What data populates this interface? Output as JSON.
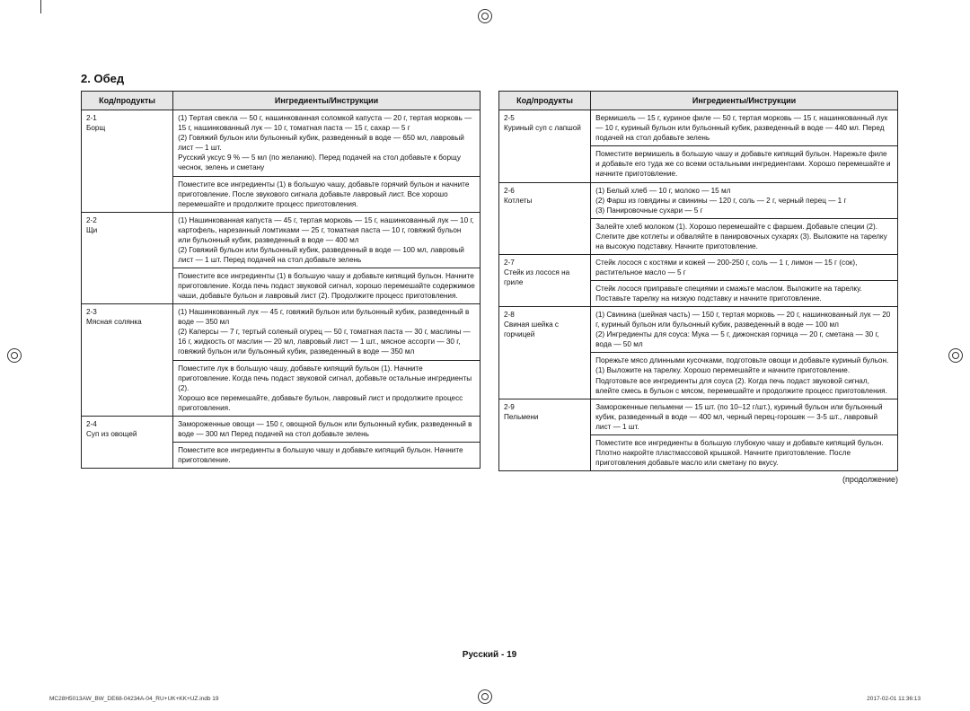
{
  "section_title": "2. Обед",
  "headers": {
    "code": "Код/продукты",
    "instr": "Ингредиенты/Инструкции"
  },
  "left_rows": [
    {
      "code": "2-1\nБорщ",
      "text": "(1) Тертая свекла — 50 г, нашинкованная соломкой капуста — 20 г, тертая морковь — 15 г, нашинкованный лук — 10 г, томатная паста — 15 г, сахар — 5 г\n(2) Говяжий бульон или бульонный кубик, разведенный в воде — 650 мл, лавровый лист — 1 шт.\nРусский уксус 9 % — 5 мл (по желанию). Перед подачей на стол добавьте к борщу чеснок, зелень и сметану"
    },
    {
      "code": "",
      "text": "Поместите все ингредиенты (1) в большую чашу, добавьте горячий бульон и начните приготовление. После звукового сигнала добавьте лавровый лист. Все хорошо перемешайте и продолжите процесс приготовления."
    },
    {
      "code": "2-2\nЩи",
      "text": "(1) Нашинкованная капуста — 45 г, тертая морковь — 15 г, нашинкованный лук — 10 г, картофель, нарезанный ломтиками — 25 г, томатная паста — 10 г, говяжий бульон или бульонный кубик, разведенный в воде — 400 мл\n(2) Говяжий бульон или бульонный кубик, разведенный в воде — 100 мл, лавровый лист — 1 шт. Перед подачей на стол добавьте зелень"
    },
    {
      "code": "",
      "text": "Поместите все ингредиенты (1) в большую чашу и добавьте кипящий бульон. Начните приготовление. Когда печь подаст звуковой сигнал, хорошо перемешайте содержимое чаши, добавьте бульон и лавровый лист (2). Продолжите процесс приготовления."
    },
    {
      "code": "2-3\nМясная солянка",
      "text": "(1) Нашинкованный лук — 45 г, говяжий бульон или бульонный кубик, разведенный в воде — 350 мл\n(2) Каперсы — 7 г, тертый соленый огурец — 50 г, томатная паста — 30 г, маслины — 16 г, жидкость от маслин — 20 мл, лавровый лист — 1 шт., мясное ассорти — 30 г, говяжий бульон или бульонный кубик, разведенный в воде — 350 мл"
    },
    {
      "code": "",
      "text": "Поместите лук в большую чашу, добавьте кипящий бульон (1). Начните приготовление. Когда печь подаст звуковой сигнал, добавьте остальные ингредиенты (2).\nХорошо все перемешайте, добавьте бульон, лавровый лист и продолжите процесс приготовления."
    },
    {
      "code": "2-4\nСуп из овощей",
      "text": "Замороженные овощи — 150 г, овощной бульон или бульонный кубик, разведенный в воде — 300 мл Перед подачей на стол добавьте зелень"
    },
    {
      "code": "",
      "text": "Поместите все ингредиенты в большую чашу и добавьте кипящий бульон. Начните приготовление."
    }
  ],
  "right_rows": [
    {
      "code": "2-5\nКуриный суп с лапшой",
      "text": "Вермишель — 15 г, куриное филе — 50 г, тертая морковь — 15 г, нашинкованный лук — 10 г, куриный бульон или бульонный кубик, разведенный в воде — 440 мл. Перед подачей на стол добавьте зелень"
    },
    {
      "code": "",
      "text": "Поместите вермишель в большую чашу и добавьте кипящий бульон. Нарежьте филе и добавьте его туда же со всеми остальными ингредиентами. Хорошо перемешайте и начните приготовление."
    },
    {
      "code": "2-6\nКотлеты",
      "text": "(1) Белый хлеб — 10 г, молоко — 15 мл\n(2) Фарш из говядины и свинины — 120 г, соль — 2 г, черный перец — 1 г\n(3) Панировочные сухари — 5 г"
    },
    {
      "code": "",
      "text": "Залейте хлеб молоком (1). Хорошо перемешайте с фаршем. Добавьте специи (2). Слепите две котлеты и обваляйте в панировочных сухарях (3). Выложите на тарелку на высокую подставку. Начните приготовление."
    },
    {
      "code": "2-7\nСтейк из лосося на гриле",
      "text": "Стейк лосося с костями и кожей — 200-250 г, соль — 1 г, лимон — 15 г (сок), растительное масло — 5 г"
    },
    {
      "code": "",
      "text": "Стейк лосося приправьте специями и смажьте маслом. Выложите на тарелку. Поставьте тарелку на низкую подставку и начните приготовление."
    },
    {
      "code": "2-8\nСвиная шейка с горчицей",
      "text": "(1) Свинина (шейная часть) — 150 г, тертая морковь — 20 г, нашинкованный лук — 20 г, куриный бульон или бульонный кубик, разведенный в воде — 100 мл\n(2) Ингредиенты для соуса: Мука — 5 г, дижонская горчица — 20 г, сметана — 30 г, вода — 50 мл"
    },
    {
      "code": "",
      "text": "Порежьте мясо длинными кусочками, подготовьте овощи и добавьте куриный бульон.(1) Выложите на тарелку. Хорошо перемешайте и начните приготовление.\nПодготовьте все ингредиенты для соуса (2). Когда печь подаст звуковой сигнал, влейте смесь в бульон с мясом, перемешайте и продолжите процесс приготовления."
    },
    {
      "code": "2-9\nПельмени",
      "text": "Замороженные пельмени — 15 шт. (по 10–12 г/шт.), куриный бульон или бульонный кубик, разведенный в воде — 400 мл, черный перец-горошек — 3-5 шт., лавровый лист — 1 шт."
    },
    {
      "code": "",
      "text": "Поместите все ингредиенты в большую глубокую чашу и добавьте кипящий бульон.\nПлотно накройте пластмассовой крышкой. Начните приготовление. После приготовления добавьте масло или сметану по вкусу."
    }
  ],
  "continuation": "(продолжение)",
  "footer_lang": "Русский - ",
  "footer_page": "19",
  "tiny_left": "MC28H5013AW_BW_DE68-04234A-04_RU+UK+KK+UZ.indb   19",
  "tiny_right": "2017-02-01   11:36:13",
  "colors": {
    "header_bg": "#e6e6e6",
    "border": "#222222",
    "background": "#ffffff",
    "text": "#111111"
  }
}
